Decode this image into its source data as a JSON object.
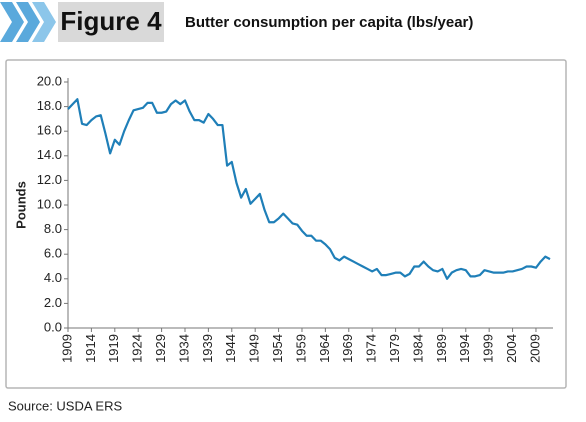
{
  "chart_data": {
    "type": "line",
    "figure_label": "Figure 4",
    "title": "Butter consumption per capita (lbs/year)",
    "y_label": "Pounds",
    "source": "Source: USDA ERS",
    "x": [
      1909,
      1910,
      1911,
      1912,
      1913,
      1914,
      1915,
      1916,
      1917,
      1918,
      1919,
      1920,
      1921,
      1922,
      1923,
      1924,
      1925,
      1926,
      1927,
      1928,
      1929,
      1930,
      1931,
      1932,
      1933,
      1934,
      1935,
      1936,
      1937,
      1938,
      1939,
      1940,
      1941,
      1942,
      1943,
      1944,
      1945,
      1946,
      1947,
      1948,
      1949,
      1950,
      1951,
      1952,
      1953,
      1954,
      1955,
      1956,
      1957,
      1958,
      1959,
      1960,
      1961,
      1962,
      1963,
      1964,
      1965,
      1966,
      1967,
      1968,
      1969,
      1970,
      1971,
      1972,
      1973,
      1974,
      1975,
      1976,
      1977,
      1978,
      1979,
      1980,
      1981,
      1982,
      1983,
      1984,
      1985,
      1986,
      1987,
      1988,
      1989,
      1990,
      1991,
      1992,
      1993,
      1994,
      1995,
      1996,
      1997,
      1998,
      1999,
      2000,
      2001,
      2002,
      2003,
      2004,
      2005,
      2006,
      2007,
      2008,
      2009,
      2010,
      2011,
      2012
    ],
    "series": [
      {
        "color": "#1f7fb8",
        "values": [
          17.8,
          18.2,
          18.6,
          16.6,
          16.5,
          16.9,
          17.2,
          17.3,
          15.8,
          14.2,
          15.3,
          14.9,
          16.0,
          16.9,
          17.7,
          17.8,
          17.9,
          18.3,
          18.3,
          17.5,
          17.5,
          17.6,
          18.2,
          18.5,
          18.2,
          18.5,
          17.6,
          16.9,
          16.9,
          16.7,
          17.4,
          17.0,
          16.5,
          16.5,
          13.2,
          13.5,
          11.8,
          10.6,
          11.3,
          10.1,
          10.5,
          10.9,
          9.6,
          8.6,
          8.6,
          8.9,
          9.3,
          8.9,
          8.5,
          8.4,
          7.9,
          7.5,
          7.5,
          7.1,
          7.1,
          6.8,
          6.4,
          5.7,
          5.5,
          5.8,
          5.6,
          5.4,
          5.2,
          5.0,
          4.8,
          4.6,
          4.8,
          4.3,
          4.3,
          4.4,
          4.5,
          4.5,
          4.2,
          4.4,
          5.0,
          5.0,
          5.4,
          5.0,
          4.7,
          4.6,
          4.8,
          4.0,
          4.5,
          4.7,
          4.8,
          4.7,
          4.2,
          4.2,
          4.3,
          4.7,
          4.6,
          4.5,
          4.5,
          4.5,
          4.6,
          4.6,
          4.7,
          4.8,
          5.0,
          5.0,
          4.9,
          5.4,
          5.8,
          5.6
        ]
      }
    ],
    "xlim": [
      1909,
      2012
    ],
    "xticks": [
      1909,
      1914,
      1919,
      1924,
      1929,
      1934,
      1939,
      1944,
      1949,
      1954,
      1959,
      1964,
      1969,
      1974,
      1979,
      1984,
      1989,
      1994,
      1999,
      2004,
      2009
    ],
    "ylim": [
      0,
      20
    ],
    "yticks": [
      {
        "value": 0,
        "label": "0.0"
      },
      {
        "value": 2,
        "label": "2.0"
      },
      {
        "value": 4,
        "label": "4.0"
      },
      {
        "value": 6,
        "label": "6.0"
      },
      {
        "value": 8,
        "label": "8.0"
      },
      {
        "value": 10,
        "label": "10.0"
      },
      {
        "value": 12,
        "label": "12.0"
      },
      {
        "value": 14,
        "label": "14.0"
      },
      {
        "value": 16,
        "label": "16.0"
      },
      {
        "value": 18,
        "label": "18.0"
      },
      {
        "value": 20,
        "label": "20.0"
      }
    ]
  }
}
